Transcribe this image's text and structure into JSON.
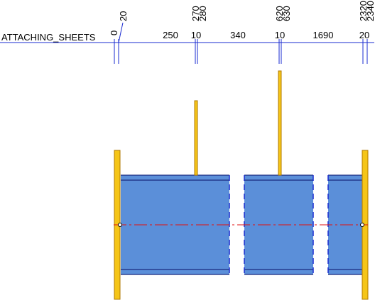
{
  "title": "ATTACHING_SHEETS",
  "ordinates": [
    0,
    20,
    270,
    280,
    620,
    630,
    2320,
    2340
  ],
  "dimensions": [
    250,
    10,
    340,
    10,
    1690,
    20
  ]
}
